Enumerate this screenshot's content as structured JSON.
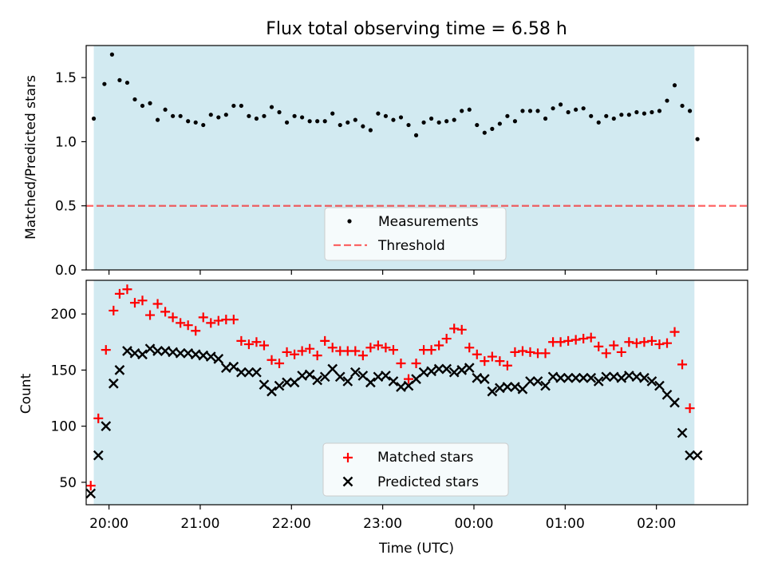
{
  "title": "Flux total observing time = 6.58 h",
  "colors": {
    "band": "#add8e6",
    "measurement": "#000000",
    "threshold": "#ff0000",
    "matched": "#ff0000",
    "predicted": "#000000"
  },
  "chart_data": [
    {
      "type": "scatter",
      "ylabel": "Matched/Predicted stars",
      "ylim": [
        0,
        1.75
      ],
      "yticks": [
        0,
        0.5,
        1.0,
        1.5
      ],
      "ytick_labels": [
        "0.0",
        "0.5",
        "1.0",
        "1.5"
      ],
      "xlim_min": [
        -15,
        420
      ],
      "shaded_span_min": [
        -10,
        385
      ],
      "threshold": 0.5,
      "legend": {
        "placement": "lower-center",
        "entries": [
          "Measurements",
          "Threshold"
        ]
      },
      "series": [
        {
          "name": "Measurements",
          "x_min": [
            -10,
            -3,
            2,
            7,
            12,
            17,
            22,
            27,
            32,
            37,
            42,
            47,
            52,
            57,
            62,
            67,
            72,
            77,
            82,
            87,
            92,
            97,
            102,
            107,
            112,
            117,
            122,
            127,
            132,
            137,
            142,
            147,
            152,
            157,
            162,
            167,
            172,
            177,
            182,
            187,
            192,
            197,
            202,
            207,
            212,
            217,
            222,
            227,
            232,
            237,
            242,
            247,
            252,
            257,
            262,
            267,
            272,
            277,
            282,
            287,
            292,
            297,
            302,
            307,
            312,
            317,
            322,
            327,
            332,
            337,
            342,
            347,
            352,
            357,
            362,
            367,
            372,
            377,
            382,
            387
          ],
          "values": [
            1.18,
            1.45,
            1.68,
            1.48,
            1.46,
            1.33,
            1.28,
            1.3,
            1.17,
            1.25,
            1.2,
            1.2,
            1.16,
            1.15,
            1.13,
            1.21,
            1.19,
            1.21,
            1.28,
            1.28,
            1.2,
            1.18,
            1.2,
            1.27,
            1.23,
            1.15,
            1.2,
            1.19,
            1.16,
            1.16,
            1.16,
            1.22,
            1.13,
            1.15,
            1.17,
            1.12,
            1.09,
            1.22,
            1.2,
            1.17,
            1.19,
            1.13,
            1.05,
            1.15,
            1.18,
            1.15,
            1.16,
            1.17,
            1.24,
            1.25,
            1.13,
            1.07,
            1.1,
            1.14,
            1.2,
            1.16,
            1.24,
            1.24,
            1.24,
            1.18,
            1.26,
            1.29,
            1.23,
            1.25,
            1.26,
            1.2,
            1.15,
            1.2,
            1.18,
            1.21,
            1.21,
            1.23,
            1.22,
            1.23,
            1.24,
            1.32,
            1.44,
            1.28,
            1.24,
            1.02
          ]
        }
      ]
    },
    {
      "type": "scatter",
      "ylabel": "Count",
      "xlabel": "Time (UTC)",
      "ylim": [
        30,
        230
      ],
      "yticks": [
        50,
        100,
        150,
        200
      ],
      "ytick_labels": [
        "50",
        "100",
        "150",
        "200"
      ],
      "xlim_min": [
        -15,
        420
      ],
      "xticks_min": [
        0,
        60,
        120,
        180,
        240,
        300,
        360
      ],
      "xtick_labels": [
        "20:00",
        "21:00",
        "22:00",
        "23:00",
        "00:00",
        "01:00",
        "02:00"
      ],
      "legend": {
        "placement": "lower-center",
        "entries": [
          "Matched stars",
          "Predicted stars"
        ]
      },
      "series": [
        {
          "name": "Matched stars",
          "x_min": [
            -12,
            -7,
            -2,
            3,
            7,
            12,
            17,
            22,
            27,
            32,
            37,
            42,
            47,
            52,
            57,
            62,
            67,
            72,
            77,
            82,
            87,
            92,
            97,
            102,
            107,
            112,
            117,
            122,
            127,
            132,
            137,
            142,
            147,
            152,
            157,
            162,
            167,
            172,
            177,
            182,
            187,
            192,
            197,
            202,
            207,
            212,
            217,
            222,
            227,
            232,
            237,
            242,
            247,
            252,
            257,
            262,
            267,
            272,
            277,
            282,
            287,
            292,
            297,
            302,
            307,
            312,
            317,
            322,
            327,
            332,
            337,
            342,
            347,
            352,
            357,
            362,
            367,
            372,
            377,
            382
          ],
          "values": [
            47,
            107,
            168,
            203,
            218,
            222,
            210,
            212,
            199,
            209,
            202,
            197,
            192,
            190,
            185,
            197,
            192,
            194,
            195,
            195,
            176,
            173,
            175,
            172,
            159,
            156,
            166,
            164,
            167,
            169,
            163,
            176,
            170,
            167,
            167,
            167,
            163,
            170,
            172,
            170,
            168,
            156,
            142,
            156,
            168,
            168,
            172,
            178,
            187,
            186,
            170,
            164,
            158,
            162,
            158,
            154,
            166,
            167,
            166,
            165,
            165,
            175,
            175,
            176,
            177,
            178,
            179,
            171,
            165,
            172,
            166,
            175,
            174,
            175,
            176,
            173,
            174,
            184,
            155,
            116
          ]
        },
        {
          "name": "Predicted stars",
          "x_min": [
            -12,
            -7,
            -2,
            3,
            7,
            12,
            17,
            22,
            27,
            32,
            37,
            42,
            47,
            52,
            57,
            62,
            67,
            72,
            77,
            82,
            87,
            92,
            97,
            102,
            107,
            112,
            117,
            122,
            127,
            132,
            137,
            142,
            147,
            152,
            157,
            162,
            167,
            172,
            177,
            182,
            187,
            192,
            197,
            202,
            207,
            212,
            217,
            222,
            227,
            232,
            237,
            242,
            247,
            252,
            257,
            262,
            267,
            272,
            277,
            282,
            287,
            292,
            297,
            302,
            307,
            312,
            317,
            322,
            327,
            332,
            337,
            342,
            347,
            352,
            357,
            362,
            367,
            372,
            377,
            382,
            387
          ],
          "values": [
            40,
            74,
            100,
            138,
            150,
            167,
            165,
            164,
            169,
            167,
            167,
            166,
            165,
            165,
            164,
            163,
            162,
            160,
            152,
            153,
            148,
            148,
            148,
            137,
            131,
            136,
            139,
            139,
            145,
            146,
            141,
            144,
            151,
            144,
            140,
            148,
            145,
            139,
            144,
            145,
            140,
            135,
            136,
            142,
            148,
            149,
            151,
            151,
            148,
            150,
            152,
            143,
            142,
            131,
            134,
            135,
            135,
            133,
            140,
            140,
            136,
            144,
            143,
            143,
            143,
            143,
            143,
            140,
            144,
            144,
            143,
            145,
            144,
            143,
            140,
            136,
            128,
            121,
            94,
            74,
            74
          ]
        }
      ]
    }
  ]
}
